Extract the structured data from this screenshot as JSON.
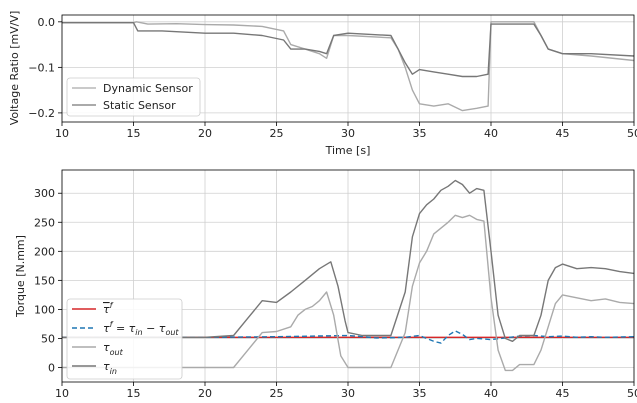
{
  "chart_data": [
    {
      "type": "line",
      "xlabel": "Time [s]",
      "ylabel": "Voltage Ratio [mV/V]",
      "xlim": [
        10,
        50
      ],
      "ylim": [
        -0.22,
        0.015
      ],
      "xticks": [
        10,
        15,
        20,
        25,
        30,
        35,
        40,
        45,
        50
      ],
      "yticks": [
        0.0,
        -0.1,
        -0.2
      ],
      "ytick_labels": [
        "0.0",
        "−0.1",
        "−0.2"
      ],
      "grid": true,
      "legend_position": "lower-left",
      "series": [
        {
          "name": "Dynamic Sensor",
          "color": "#aaaaaa",
          "points": [
            [
              10,
              -0.002
            ],
            [
              15,
              -0.002
            ],
            [
              15.2,
              0.0
            ],
            [
              16,
              -0.005
            ],
            [
              18,
              -0.004
            ],
            [
              20,
              -0.006
            ],
            [
              22,
              -0.007
            ],
            [
              24,
              -0.01
            ],
            [
              25.5,
              -0.02
            ],
            [
              26,
              -0.05
            ],
            [
              27,
              -0.06
            ],
            [
              28,
              -0.07
            ],
            [
              28.5,
              -0.08
            ],
            [
              29,
              -0.03
            ],
            [
              30,
              -0.03
            ],
            [
              33,
              -0.035
            ],
            [
              33.5,
              -0.06
            ],
            [
              34,
              -0.1
            ],
            [
              34.5,
              -0.15
            ],
            [
              35,
              -0.18
            ],
            [
              36,
              -0.185
            ],
            [
              37,
              -0.18
            ],
            [
              38,
              -0.195
            ],
            [
              39,
              -0.19
            ],
            [
              39.8,
              -0.185
            ],
            [
              40,
              -0.0
            ],
            [
              41,
              0.0
            ],
            [
              43,
              0.0
            ],
            [
              43.5,
              -0.03
            ],
            [
              44,
              -0.06
            ],
            [
              45,
              -0.07
            ],
            [
              47,
              -0.075
            ],
            [
              50,
              -0.085
            ]
          ]
        },
        {
          "name": "Static Sensor",
          "color": "#777777",
          "points": [
            [
              10,
              -0.002
            ],
            [
              15,
              -0.002
            ],
            [
              15.3,
              -0.02
            ],
            [
              17,
              -0.02
            ],
            [
              20,
              -0.025
            ],
            [
              22,
              -0.025
            ],
            [
              24,
              -0.03
            ],
            [
              25.5,
              -0.04
            ],
            [
              26,
              -0.06
            ],
            [
              27,
              -0.06
            ],
            [
              28,
              -0.065
            ],
            [
              28.5,
              -0.07
            ],
            [
              29,
              -0.03
            ],
            [
              30,
              -0.025
            ],
            [
              33,
              -0.03
            ],
            [
              33.5,
              -0.06
            ],
            [
              34,
              -0.09
            ],
            [
              34.5,
              -0.115
            ],
            [
              35,
              -0.105
            ],
            [
              36,
              -0.11
            ],
            [
              37,
              -0.115
            ],
            [
              38,
              -0.12
            ],
            [
              39,
              -0.12
            ],
            [
              39.8,
              -0.115
            ],
            [
              40,
              -0.005
            ],
            [
              41,
              -0.005
            ],
            [
              43,
              -0.005
            ],
            [
              43.5,
              -0.03
            ],
            [
              44,
              -0.06
            ],
            [
              45,
              -0.07
            ],
            [
              47,
              -0.07
            ],
            [
              50,
              -0.075
            ]
          ]
        }
      ]
    },
    {
      "type": "line",
      "xlabel": "",
      "ylabel": "Torque [N.mm]",
      "xlim": [
        10,
        50
      ],
      "ylim": [
        -25,
        340
      ],
      "xticks": [
        10,
        15,
        20,
        25,
        30,
        35,
        40,
        45,
        50
      ],
      "yticks": [
        0,
        50,
        100,
        150,
        200,
        250,
        300
      ],
      "grid": true,
      "legend_position": "lower-left",
      "series": [
        {
          "name": "τ̄ᶠ",
          "legend_main": "τ",
          "legend_sup": "f",
          "legend_overline": true,
          "color": "#d62728",
          "dash": "",
          "points": [
            [
              10,
              52
            ],
            [
              50,
              52
            ]
          ]
        },
        {
          "name": "τᶠ = τᵢₙ − τₒᵤₜ",
          "legend_main": "τ",
          "legend_sup": "f",
          "legend_rest": " = τ",
          "legend_sub1": "in",
          "legend_rest2": " − τ",
          "legend_sub2": "out",
          "color": "#1f77b4",
          "dash": "5,3",
          "points": [
            [
              10,
              52
            ],
            [
              20,
              52
            ],
            [
              25,
              53
            ],
            [
              30,
              55
            ],
            [
              32,
              51
            ],
            [
              34,
              52
            ],
            [
              35,
              55
            ],
            [
              36,
              45
            ],
            [
              36.5,
              42
            ],
            [
              37,
              55
            ],
            [
              37.5,
              63
            ],
            [
              38,
              57
            ],
            [
              38.5,
              48
            ],
            [
              39,
              50
            ],
            [
              40,
              48
            ],
            [
              41,
              51
            ],
            [
              42,
              54
            ],
            [
              43,
              55
            ],
            [
              44,
              53
            ],
            [
              45,
              54
            ],
            [
              46,
              52
            ],
            [
              47,
              53
            ],
            [
              48,
              52
            ],
            [
              50,
              53
            ]
          ]
        },
        {
          "name": "τₒᵤₜ",
          "legend_main": "τ",
          "legend_sub1": "out",
          "color": "#aaaaaa",
          "dash": "",
          "points": [
            [
              10,
              0
            ],
            [
              18,
              0
            ],
            [
              22,
              0
            ],
            [
              23,
              30
            ],
            [
              24,
              60
            ],
            [
              25,
              62
            ],
            [
              26,
              70
            ],
            [
              26.5,
              90
            ],
            [
              27,
              100
            ],
            [
              27.5,
              105
            ],
            [
              28,
              115
            ],
            [
              28.5,
              130
            ],
            [
              29,
              90
            ],
            [
              29.5,
              20
            ],
            [
              30,
              0
            ],
            [
              33,
              0
            ],
            [
              34,
              60
            ],
            [
              34.5,
              140
            ],
            [
              35,
              180
            ],
            [
              35.5,
              200
            ],
            [
              36,
              230
            ],
            [
              37,
              250
            ],
            [
              37.5,
              262
            ],
            [
              38,
              258
            ],
            [
              38.5,
              262
            ],
            [
              39,
              255
            ],
            [
              39.5,
              252
            ],
            [
              40,
              120
            ],
            [
              40.5,
              30
            ],
            [
              41,
              -5
            ],
            [
              41.5,
              -5
            ],
            [
              42,
              5
            ],
            [
              43,
              5
            ],
            [
              43.5,
              30
            ],
            [
              44,
              70
            ],
            [
              44.5,
              110
            ],
            [
              45,
              125
            ],
            [
              46,
              120
            ],
            [
              47,
              115
            ],
            [
              48,
              118
            ],
            [
              49,
              112
            ],
            [
              50,
              110
            ]
          ]
        },
        {
          "name": "τᵢₙ",
          "legend_main": "τ",
          "legend_sub1": "in",
          "color": "#777777",
          "dash": "",
          "points": [
            [
              10,
              52
            ],
            [
              20,
              52
            ],
            [
              22,
              55
            ],
            [
              23,
              85
            ],
            [
              24,
              115
            ],
            [
              25,
              112
            ],
            [
              26,
              130
            ],
            [
              27,
              150
            ],
            [
              28,
              170
            ],
            [
              28.8,
              182
            ],
            [
              29.3,
              140
            ],
            [
              29.8,
              80
            ],
            [
              30,
              60
            ],
            [
              31,
              55
            ],
            [
              33,
              55
            ],
            [
              34,
              130
            ],
            [
              34.5,
              225
            ],
            [
              35,
              265
            ],
            [
              35.5,
              280
            ],
            [
              36,
              290
            ],
            [
              36.5,
              305
            ],
            [
              37,
              312
            ],
            [
              37.5,
              322
            ],
            [
              38,
              315
            ],
            [
              38.5,
              300
            ],
            [
              39,
              308
            ],
            [
              39.5,
              305
            ],
            [
              40,
              200
            ],
            [
              40.5,
              90
            ],
            [
              41,
              50
            ],
            [
              41.5,
              45
            ],
            [
              42,
              55
            ],
            [
              43,
              55
            ],
            [
              43.5,
              90
            ],
            [
              44,
              150
            ],
            [
              44.5,
              172
            ],
            [
              45,
              178
            ],
            [
              46,
              170
            ],
            [
              47,
              172
            ],
            [
              48,
              170
            ],
            [
              49,
              165
            ],
            [
              50,
              162
            ]
          ]
        }
      ]
    }
  ]
}
